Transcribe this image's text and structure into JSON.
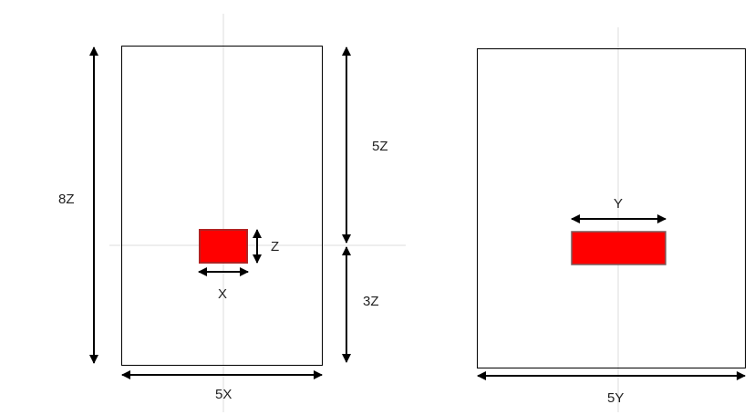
{
  "labels": {
    "left_height": "8Z",
    "upper": "5Z",
    "lower": "3Z",
    "block_height": "Z",
    "block_width": "X",
    "left_width": "5X",
    "right_block_width": "Y",
    "right_width": "5Y"
  },
  "colors": {
    "block_fill": "#ff0000",
    "left_block_border": "#b22222",
    "right_block_border": "#7a5a5a",
    "guide": "#d8d8d8",
    "outline": "#000000"
  }
}
